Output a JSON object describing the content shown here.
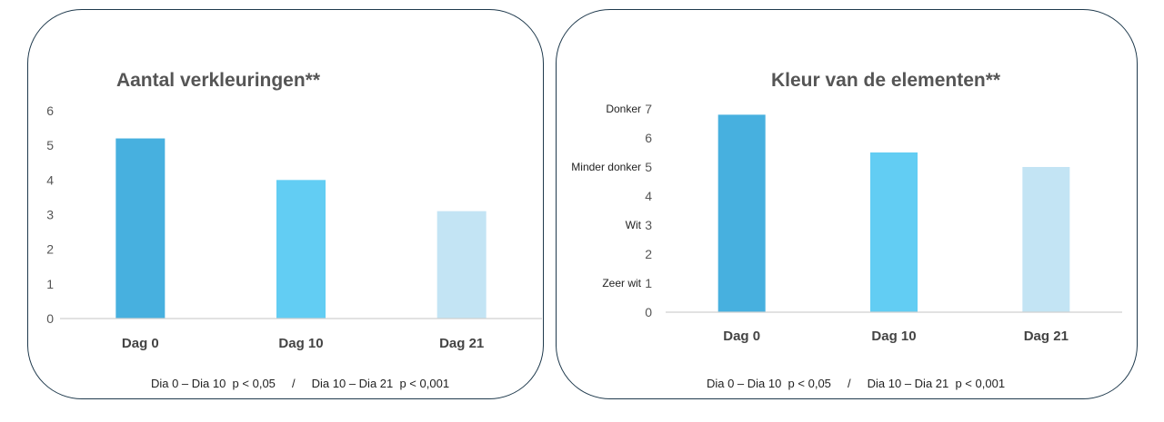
{
  "chart_data": [
    {
      "type": "bar",
      "title": "Aantal verkleuringen**",
      "categories": [
        "Dag 0",
        "Dag 10",
        "Dag 21"
      ],
      "values": [
        5.2,
        4.0,
        3.1
      ],
      "colors": [
        "#47b0df",
        "#62cdf3",
        "#c3e4f4"
      ],
      "ylim": [
        0,
        6
      ],
      "yticks": [
        "0",
        "1",
        "2",
        "3",
        "4",
        "5",
        "6"
      ],
      "xlabel": "",
      "ylabel": "",
      "footnote": "Dia 0 – Dia 10  p < 0,05     /     Dia 10 – Dia 21  p < 0,001"
    },
    {
      "type": "bar",
      "title": "Kleur van de elementen**",
      "categories": [
        "Dag 0",
        "Dag 10",
        "Dag 21"
      ],
      "values": [
        6.8,
        5.5,
        5.0
      ],
      "colors": [
        "#47b0df",
        "#62cdf3",
        "#c3e4f4"
      ],
      "ylim": [
        0,
        7
      ],
      "yticks": [
        "0",
        "1",
        "2",
        "3",
        "4",
        "5",
        "6",
        "7"
      ],
      "ytick_labels": [
        {
          "value": 1,
          "label": "Zeer wit"
        },
        {
          "value": 3,
          "label": "Wit"
        },
        {
          "value": 5,
          "label": "Minder donker"
        },
        {
          "value": 7,
          "label": "Donker"
        }
      ],
      "xlabel": "",
      "ylabel": "",
      "footnote": "Dia 0 – Dia 10  p < 0,05     /     Dia 10 – Dia 21  p < 0,001"
    }
  ]
}
